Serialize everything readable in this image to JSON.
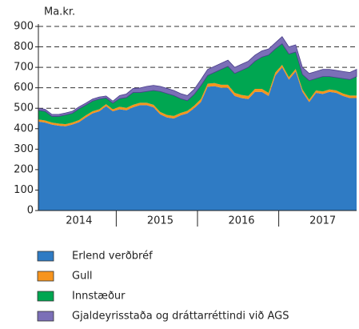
{
  "chart_data": {
    "type": "stacked-area",
    "axis_label": "Ma.kr.",
    "categories": [
      null,
      null,
      null,
      null,
      null,
      null,
      "2014",
      null,
      null,
      null,
      null,
      null,
      null,
      null,
      null,
      null,
      null,
      null,
      "2015",
      null,
      null,
      null,
      null,
      null,
      null,
      null,
      null,
      null,
      null,
      null,
      "2016",
      null,
      null,
      null,
      null,
      null,
      null,
      null,
      null,
      null,
      null,
      null,
      "2017",
      null,
      null,
      null,
      null,
      null
    ],
    "series": [
      {
        "name": "Erlend verðbréf",
        "color": "#2f7bc4",
        "values": [
          435,
          430,
          420,
          415,
          412,
          420,
          432,
          455,
          475,
          485,
          510,
          485,
          495,
          490,
          505,
          515,
          515,
          505,
          470,
          455,
          450,
          465,
          475,
          500,
          530,
          605,
          608,
          600,
          600,
          560,
          550,
          545,
          580,
          580,
          560,
          660,
          700,
          640,
          680,
          580,
          530,
          575,
          570,
          580,
          575,
          560,
          550,
          550
        ]
      },
      {
        "name": "Gull",
        "color": "#f7941d",
        "values": [
          10,
          10,
          10,
          10,
          10,
          10,
          10,
          10,
          10,
          10,
          10,
          10,
          12,
          12,
          12,
          12,
          12,
          12,
          12,
          12,
          12,
          12,
          12,
          12,
          15,
          15,
          15,
          15,
          15,
          15,
          15,
          15,
          15,
          15,
          15,
          15,
          12,
          12,
          12,
          12,
          12,
          12,
          12,
          12,
          12,
          12,
          12,
          12
        ]
      },
      {
        "name": "Innstæður",
        "color": "#00a651",
        "values": [
          45,
          45,
          30,
          35,
          45,
          45,
          55,
          50,
          50,
          50,
          30,
          30,
          40,
          50,
          60,
          50,
          55,
          70,
          100,
          105,
          100,
          70,
          50,
          55,
          65,
          40,
          52,
          75,
          90,
          95,
          120,
          140,
          135,
          155,
          185,
          115,
          103,
          113,
          83,
          73,
          93,
          58,
          73,
          63,
          63,
          73,
          78,
          93
        ]
      },
      {
        "name": "Gjaldeyrisstaða og dráttarréttindi við AGS",
        "color": "#7b6fb7",
        "values": [
          10,
          10,
          10,
          10,
          10,
          10,
          10,
          10,
          10,
          10,
          10,
          10,
          15,
          18,
          20,
          22,
          25,
          25,
          25,
          25,
          25,
          25,
          25,
          25,
          30,
          30,
          30,
          30,
          30,
          30,
          30,
          30,
          30,
          30,
          30,
          30,
          35,
          35,
          35,
          35,
          35,
          35,
          35,
          35,
          35,
          35,
          35,
          35
        ]
      }
    ],
    "ylim": [
      0,
      900
    ],
    "yticks": [
      0,
      100,
      200,
      300,
      400,
      500,
      600,
      700,
      800,
      900
    ],
    "grid": true
  }
}
